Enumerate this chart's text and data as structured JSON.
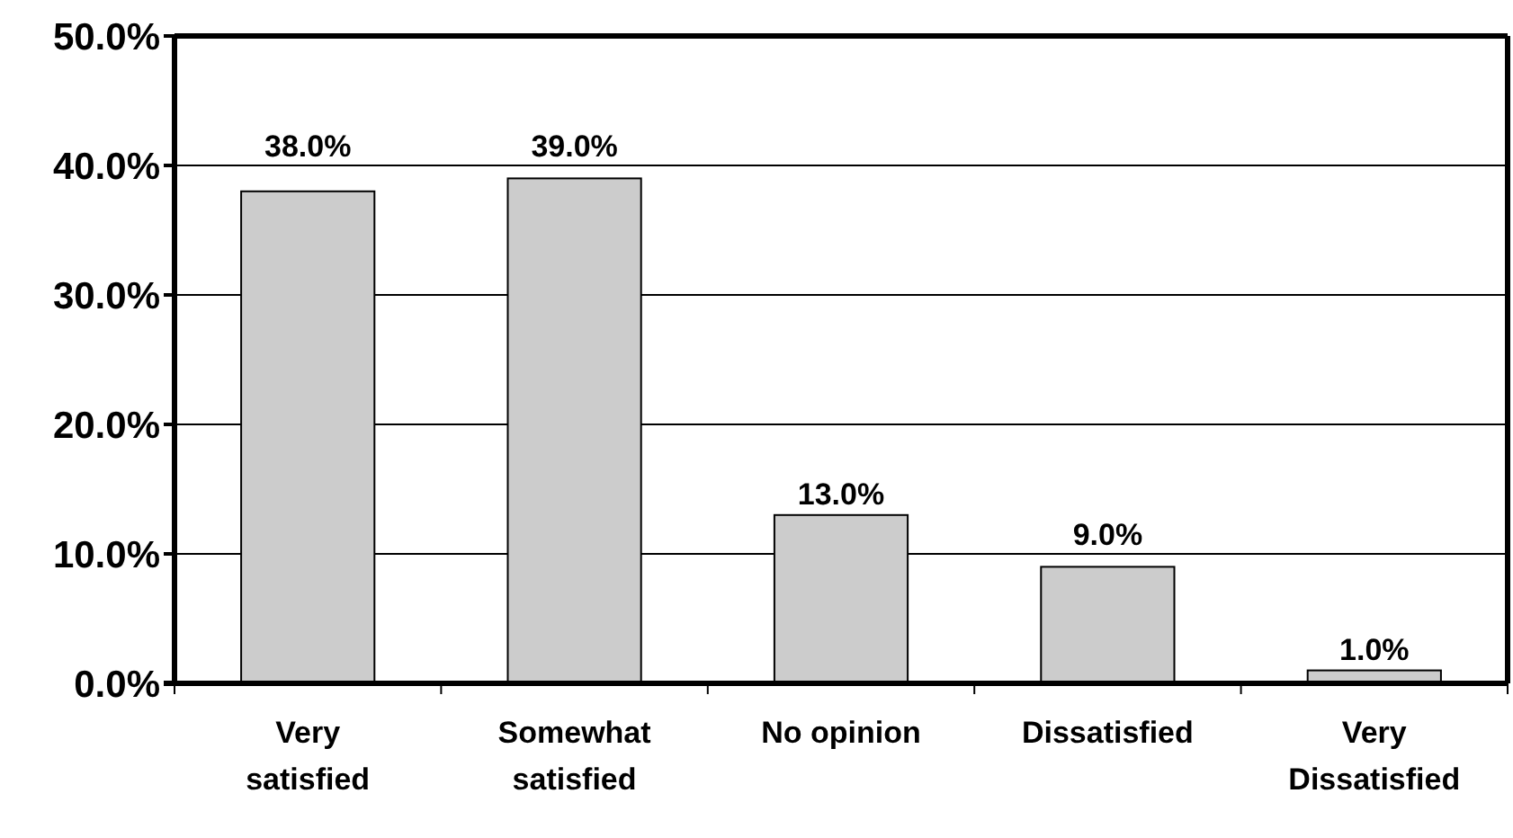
{
  "chart_data": {
    "type": "bar",
    "categories": [
      "Very satisfied",
      "Somewhat satisfied",
      "No opinion",
      "Dissatisfied",
      "Very Dissatisfied"
    ],
    "values": [
      38,
      39,
      13,
      9,
      1
    ],
    "value_labels": [
      "38.0%",
      "39.0%",
      "13.0%",
      "9.0%",
      "1.0%"
    ],
    "color": "#cccccc",
    "ylim": [
      0,
      50
    ],
    "yticks": [
      {
        "value": 0,
        "label": "0.0%"
      },
      {
        "value": 10,
        "label": "10.0%"
      },
      {
        "value": 20,
        "label": "20.0%"
      },
      {
        "value": 30,
        "label": "30.0%"
      },
      {
        "value": 40,
        "label": "40.0%"
      },
      {
        "value": 50,
        "label": "50.0%"
      }
    ],
    "grid": "y"
  }
}
